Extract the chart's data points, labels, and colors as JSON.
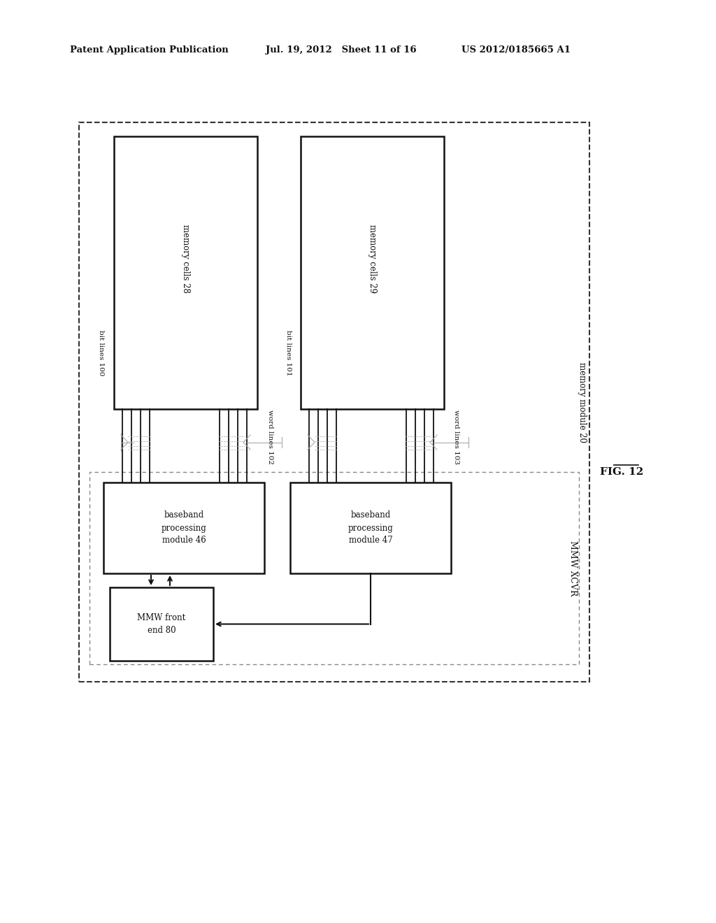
{
  "header_left": "Patent Application Publication",
  "header_mid": "Jul. 19, 2012   Sheet 11 of 16",
  "header_right": "US 2012/0185665 A1",
  "fig_label": "FIG. 12",
  "memory_module_label": "memory module 20",
  "mmw_xcvr_label": "MMW XCVR",
  "mem_cell1_label": "memory cells 28",
  "mem_cell2_label": "memory cells 29",
  "bit_lines1_label": "bit lines 100",
  "word_lines1_label": "word lines 102",
  "bit_lines2_label": "bit lines 101",
  "word_lines2_label": "word lines 103",
  "baseband1_label": "baseband\nprocessing\nmodule 46",
  "baseband2_label": "baseband\nprocessing\nmodule 47",
  "mmw_front_label": "MMW front\nend 80",
  "bg_color": "#ffffff",
  "line_color": "#111111"
}
